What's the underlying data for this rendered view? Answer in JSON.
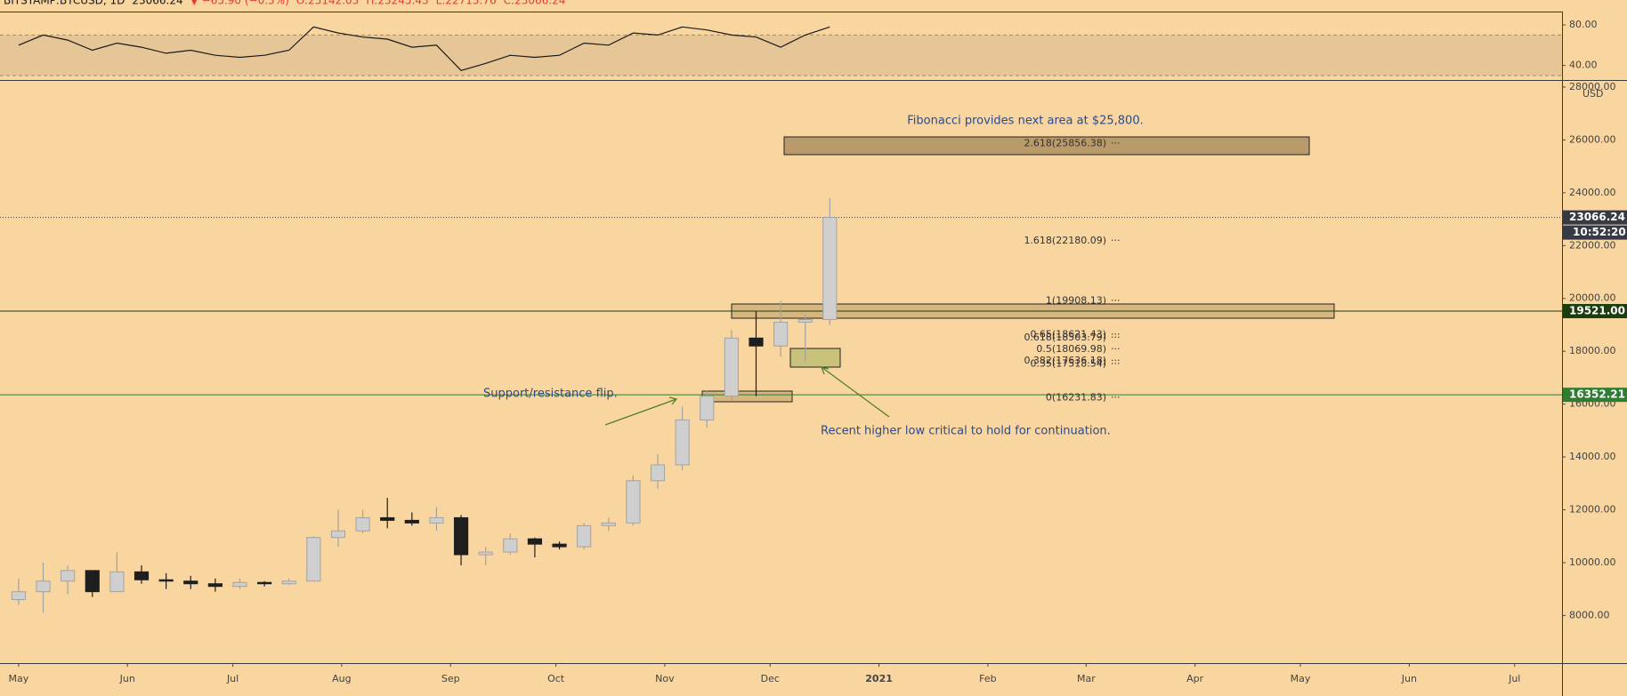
{
  "header": {
    "items": [
      {
        "text": "BITSTAMP:BTCUSD, 1D",
        "color": "#131722"
      },
      {
        "text": "23066.24",
        "color": "#131722"
      },
      {
        "text": "▼ −65.90 (−0.3%)",
        "color": "#e53935"
      },
      {
        "text": "O:23142.03",
        "color": "#e53935"
      },
      {
        "text": "H:23245.43",
        "color": "#e53935"
      },
      {
        "text": "L:22713.76",
        "color": "#e53935"
      },
      {
        "text": "C:23066.24",
        "color": "#e53935"
      }
    ]
  },
  "chart_data": {
    "type": "candlestick",
    "x": [
      0,
      7,
      14,
      21,
      28,
      35,
      42,
      49,
      56,
      63,
      70,
      77,
      84,
      91,
      98,
      105,
      112,
      119,
      126,
      133,
      140,
      147,
      154,
      161,
      168,
      175,
      182,
      189,
      196,
      203,
      210,
      217,
      224,
      231
    ],
    "open": [
      8600,
      8900,
      9300,
      9700,
      8900,
      9650,
      9350,
      9300,
      9200,
      9100,
      9250,
      9200,
      9300,
      10950,
      11200,
      11700,
      11600,
      11500,
      11700,
      10300,
      10400,
      10900,
      10700,
      10600,
      11400,
      11500,
      13100,
      13700,
      15400,
      16300,
      18500,
      18200,
      19100,
      19200
    ],
    "high": [
      9400,
      10000,
      9900,
      9700,
      10400,
      9900,
      9600,
      9500,
      9400,
      9400,
      9300,
      9400,
      11000,
      12000,
      12000,
      12450,
      11900,
      12100,
      11800,
      10600,
      11100,
      10950,
      10800,
      11500,
      11700,
      13300,
      14100,
      15900,
      16500,
      18800,
      19500,
      19900,
      19400,
      23800
    ],
    "low": [
      8400,
      8100,
      8800,
      8700,
      8900,
      9200,
      9000,
      9000,
      8900,
      9000,
      9100,
      9150,
      9300,
      10600,
      11100,
      11300,
      11400,
      11200,
      9900,
      9900,
      10300,
      10200,
      10500,
      10500,
      11200,
      11400,
      12800,
      13500,
      15100,
      16100,
      16300,
      17800,
      17600,
      19000
    ],
    "close": [
      8900,
      9300,
      9700,
      8900,
      9650,
      9350,
      9300,
      9200,
      9100,
      9250,
      9200,
      9300,
      10950,
      11200,
      11700,
      11600,
      11500,
      11700,
      10300,
      10400,
      10900,
      10700,
      10600,
      11400,
      11500,
      13100,
      13700,
      15400,
      16300,
      18500,
      18200,
      19100,
      19200,
      23066.24
    ],
    "up_color": "#a3a3a3",
    "down_color": "#1e1e1e",
    "xlim": [
      -5.3,
      439.5
    ],
    "xticks": [
      {
        "value": 0,
        "label": "May"
      },
      {
        "value": 31,
        "label": "Jun"
      },
      {
        "value": 61,
        "label": "Jul"
      },
      {
        "value": 92,
        "label": "Aug"
      },
      {
        "value": 123,
        "label": "Sep"
      },
      {
        "value": 153,
        "label": "Oct"
      },
      {
        "value": 184,
        "label": "Nov"
      },
      {
        "value": 214,
        "label": "Dec"
      },
      {
        "value": 245,
        "label": "2021"
      },
      {
        "value": 276,
        "label": "Feb"
      },
      {
        "value": 304,
        "label": "Mar"
      },
      {
        "value": 335,
        "label": "Apr"
      },
      {
        "value": 365,
        "label": "May"
      },
      {
        "value": 396,
        "label": "Jun"
      },
      {
        "value": 426,
        "label": "Jul"
      }
    ],
    "ylim": [
      6196,
      28235
    ],
    "yticks": [
      {
        "value": 8000,
        "label": "8000.00"
      },
      {
        "value": 10000,
        "label": "10000.00"
      },
      {
        "value": 12000,
        "label": "12000.00"
      },
      {
        "value": 14000,
        "label": "14000.00"
      },
      {
        "value": 16000,
        "label": "16000.00"
      },
      {
        "value": 18000,
        "label": "18000.00"
      },
      {
        "value": 20000,
        "label": "20000.00"
      },
      {
        "value": 22000,
        "label": "22000.00"
      },
      {
        "value": 24000,
        "label": "24000.00"
      },
      {
        "value": 26000,
        "label": "26000.00"
      },
      {
        "value": 28000,
        "label": "28000.00"
      }
    ],
    "axis_unit": "USD",
    "grid": false,
    "price_lines": [
      {
        "value": 23066.24,
        "color": "#363a45",
        "style": "dotted"
      },
      {
        "value": 19521,
        "label": "19521.00",
        "color": "#1c3d0e",
        "style": "solid"
      },
      {
        "value": 16352.21,
        "color": "#2e7d32",
        "style": "solid"
      }
    ],
    "countdown": "10:52:20",
    "fib_levels": [
      {
        "label": "2.618(25856.38)",
        "value": 25856.38
      },
      {
        "label": "1.618(22180.09)",
        "value": 22180.09
      },
      {
        "label": "1(19908.13)",
        "value": 19908.13
      },
      {
        "label": "0.65(18621.43)",
        "value": 18621.43
      },
      {
        "label": "0.618(18503.79)",
        "value": 18503.79
      },
      {
        "label": "0.5(18069.98)",
        "value": 18069.98
      },
      {
        "label": "0.382(17636.18)",
        "value": 17636.18
      },
      {
        "label": "0.35(17518.54)",
        "value": 17518.54
      },
      {
        "label": "0(16231.83)",
        "value": 16231.83
      }
    ],
    "annotations": [
      "Fibonacci provides next area at $25,800.",
      "Support/resistance flip.",
      "Recent higher low critical to hold for continuation."
    ],
    "rsi": {
      "values": [
        60,
        70,
        65,
        55,
        62,
        58,
        52,
        55,
        50,
        48,
        50,
        55,
        78,
        72,
        68,
        66,
        58,
        60,
        35,
        42,
        50,
        48,
        50,
        62,
        60,
        72,
        70,
        78,
        75,
        70,
        68,
        58,
        70,
        78
      ],
      "ylim": [
        25.6,
        92.3
      ],
      "yticks": [
        {
          "value": 80,
          "label": "80.00"
        },
        {
          "value": 40,
          "label": "40.00"
        }
      ],
      "band": [
        30,
        70
      ],
      "color": "#1a1a1a"
    }
  }
}
